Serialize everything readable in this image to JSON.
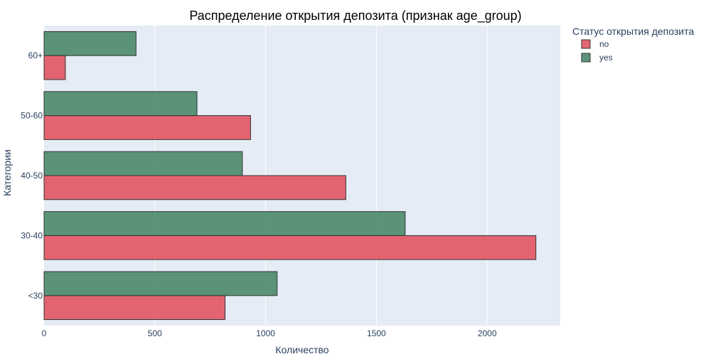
{
  "chart_data": {
    "type": "bar",
    "orientation": "horizontal",
    "title": "Распределение открытия депозита (признак age_group)",
    "xlabel": "Количество",
    "ylabel": "Категории",
    "categories": [
      "<30",
      "30-40",
      "40-50",
      "50-60",
      "60+"
    ],
    "series": [
      {
        "name": "no",
        "values": [
          817,
          2220,
          1362,
          932,
          96
        ],
        "color": "#e15562"
      },
      {
        "name": "yes",
        "values": [
          1052,
          1630,
          895,
          690,
          415
        ],
        "color": "#4a8a6a"
      }
    ],
    "xlim": [
      0,
      2330
    ],
    "xticks": [
      0,
      500,
      1000,
      1500,
      2000
    ],
    "legend": {
      "title": "Статус открытия депозита",
      "position": "right"
    },
    "grid": true,
    "plot_background": "#e5ecf6"
  }
}
